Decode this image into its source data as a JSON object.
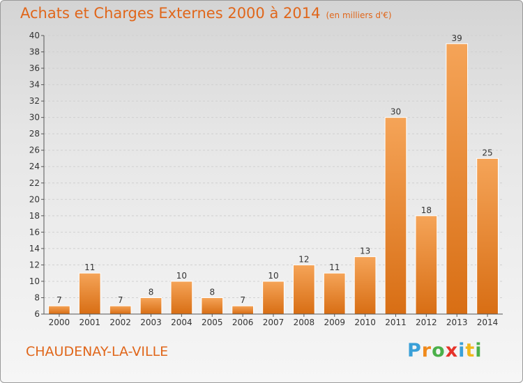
{
  "header": {
    "title": "Achats et Charges Externes 2000 à 2014",
    "subtitle": "(en milliers d'€)"
  },
  "commune": "CHAUDENAY-LA-VILLE",
  "logo": {
    "letters": [
      "P",
      "r",
      "o",
      "x",
      "i",
      "t",
      "i"
    ],
    "colors": [
      "#3aa0d8",
      "#f08a1c",
      "#4bb04a",
      "#e6332a",
      "#3aa0d8",
      "#f0b81c",
      "#4bb04a"
    ]
  },
  "chart_data": {
    "type": "bar",
    "title": "Achats et Charges Externes 2000 à 2014",
    "subtitle": "(en milliers d'€)",
    "categories": [
      "2000",
      "2001",
      "2002",
      "2003",
      "2004",
      "2005",
      "2006",
      "2007",
      "2008",
      "2009",
      "2010",
      "2011",
      "2012",
      "2013",
      "2014"
    ],
    "values": [
      7,
      11,
      7,
      8,
      10,
      8,
      7,
      10,
      12,
      11,
      13,
      30,
      18,
      39,
      25
    ],
    "ylim": [
      6,
      40
    ],
    "yticks": [
      6,
      8,
      10,
      12,
      14,
      16,
      18,
      20,
      22,
      24,
      26,
      28,
      30,
      32,
      34,
      36,
      38,
      40
    ],
    "grid": true,
    "bar_color": "#f08a2a"
  }
}
